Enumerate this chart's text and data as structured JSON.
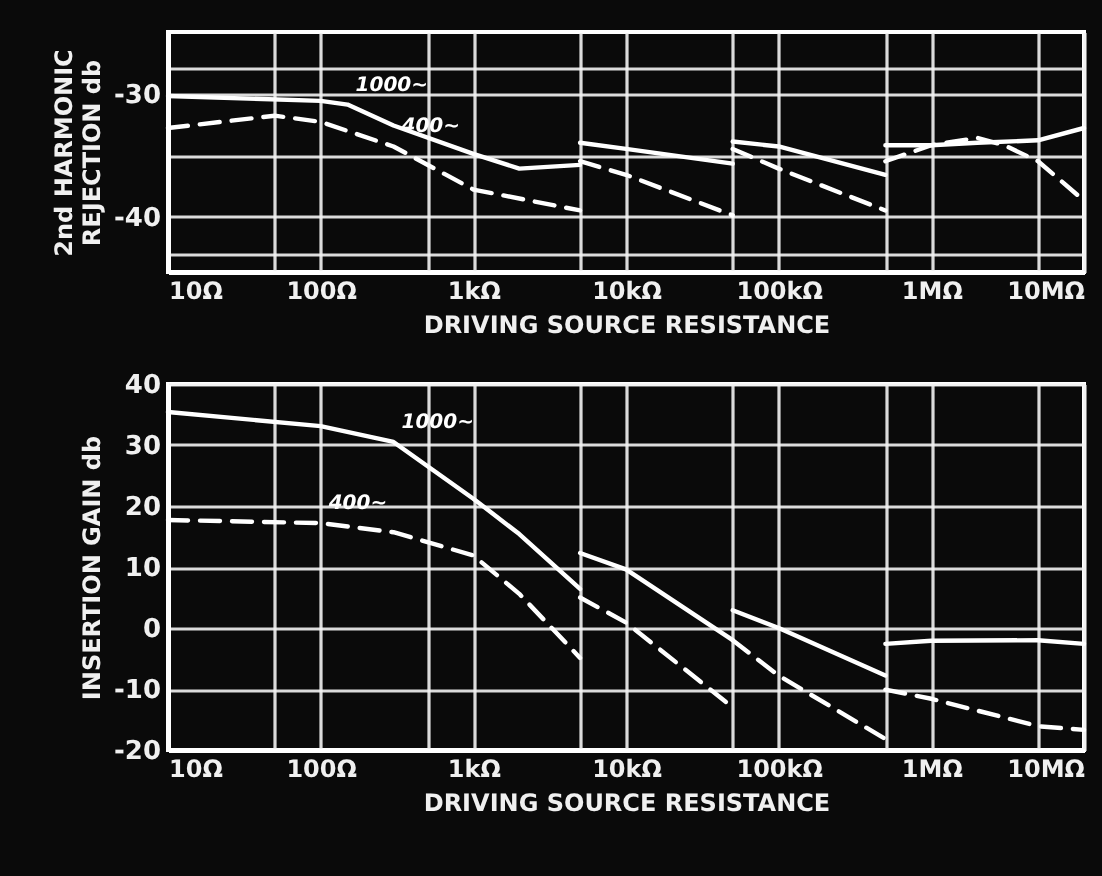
{
  "chart_data": [
    {
      "type": "line",
      "ylabel": "2nd HARMONIC\nREJECTION db",
      "xlabel": "DRIVING SOURCE RESISTANCE",
      "log": "x",
      "grid": true,
      "xlim": [
        10,
        10000000
      ],
      "ylim": [
        -44.5,
        -25
      ],
      "xticks": [
        {
          "value": 10,
          "label": "10Ω"
        },
        {
          "value": 50,
          "label": null
        },
        {
          "value": 100,
          "label": "100Ω"
        },
        {
          "value": 500,
          "label": null
        },
        {
          "value": 1000,
          "label": "1kΩ"
        },
        {
          "value": 5000,
          "label": null
        },
        {
          "value": 10000,
          "label": "10kΩ"
        },
        {
          "value": 50000,
          "label": null
        },
        {
          "value": 100000,
          "label": "100kΩ"
        },
        {
          "value": 500000,
          "label": null
        },
        {
          "value": 1000000,
          "label": "1MΩ"
        },
        {
          "value": 5000000,
          "label": null
        },
        {
          "value": 10000000,
          "label": "10MΩ"
        }
      ],
      "yticks": [
        {
          "value": -28,
          "label": null
        },
        -30,
        {
          "value": -35,
          "label": null
        },
        -40,
        {
          "value": -43,
          "label": null
        }
      ],
      "series": [
        {
          "color": "#ffffff",
          "line_style": "solid",
          "x": [
            10,
            100,
            150,
            300,
            1000,
            2000,
            5000,
            null,
            5000,
            10000,
            50000,
            null,
            50000,
            100000,
            500000,
            null,
            500000,
            1000000,
            2000000,
            5000000,
            10000000
          ],
          "values": [
            -30.2,
            -30.6,
            -30.9,
            -32.6,
            -34.9,
            -36.1,
            -35.8,
            null,
            -34.0,
            -34.5,
            -35.7,
            null,
            -33.9,
            -34.3,
            -36.6,
            null,
            -34.2,
            -34.2,
            -34.0,
            -33.8,
            -32.8
          ]
        },
        {
          "color": "#ffffff",
          "line_style": "dashed",
          "x": [
            10,
            50,
            100,
            300,
            1000,
            5000,
            null,
            5000,
            10000,
            50000,
            null,
            50000,
            100000,
            500000,
            null,
            500000,
            1000000,
            2000000,
            3000000,
            5000000,
            10000000
          ],
          "values": [
            -32.8,
            -31.8,
            -32.3,
            -34.3,
            -37.8,
            -39.5,
            null,
            -35.5,
            -36.6,
            -39.9,
            null,
            -34.5,
            -36.1,
            -39.5,
            null,
            -35.5,
            -34.2,
            -33.6,
            -34.2,
            -35.5,
            -38.7
          ]
        }
      ],
      "annotations": [
        {
          "text": "1000~",
          "x": 150,
          "y": -30.9
        },
        {
          "text": "400~",
          "x": 300,
          "y": -34.3
        }
      ]
    },
    {
      "type": "line",
      "ylabel": "INSERTION GAIN db",
      "xlabel": "DRIVING SOURCE RESISTANCE",
      "log": "x",
      "grid": true,
      "xlim": [
        10,
        10000000
      ],
      "ylim": [
        -20,
        40
      ],
      "xticks": [
        {
          "value": 10,
          "label": "10Ω"
        },
        {
          "value": 50,
          "label": null
        },
        {
          "value": 100,
          "label": "100Ω"
        },
        {
          "value": 500,
          "label": null
        },
        {
          "value": 1000,
          "label": "1kΩ"
        },
        {
          "value": 5000,
          "label": null
        },
        {
          "value": 10000,
          "label": "10kΩ"
        },
        {
          "value": 50000,
          "label": null
        },
        {
          "value": 100000,
          "label": "100kΩ"
        },
        {
          "value": 500000,
          "label": null
        },
        {
          "value": 1000000,
          "label": "1MΩ"
        },
        {
          "value": 5000000,
          "label": null
        },
        {
          "value": 10000000,
          "label": "10MΩ"
        }
      ],
      "yticks": [
        -20,
        -10,
        0,
        10,
        20,
        30,
        40
      ],
      "series": [
        {
          "color": "#ffffff",
          "line_style": "solid",
          "x": [
            10,
            100,
            300,
            1000,
            2000,
            5000,
            null,
            5000,
            10000,
            50000,
            null,
            50000,
            100000,
            500000,
            null,
            500000,
            1000000,
            5000000,
            10000000
          ],
          "values": [
            35.4,
            33.1,
            30.5,
            21.2,
            15.4,
            6.4,
            null,
            12.3,
            9.6,
            -2,
            null,
            2.9,
            0,
            -7.8,
            null,
            -2.6,
            -2.1,
            -2,
            -2.6
          ]
        },
        {
          "color": "#ffffff",
          "line_style": "dashed",
          "x": [
            10,
            100,
            300,
            1000,
            2000,
            5000,
            null,
            5000,
            10000,
            50000,
            null,
            50000,
            100000,
            500000,
            null,
            500000,
            1000000,
            5000000,
            10000000
          ],
          "values": [
            17.7,
            17.2,
            15.7,
            11.9,
            5.6,
            -4.9,
            null,
            5,
            0.9,
            -13,
            null,
            -2,
            -7.8,
            -18.2,
            null,
            -10.1,
            -11.6,
            -16.1,
            -16.7
          ]
        }
      ],
      "annotations": [
        {
          "text": "1000~",
          "x": 300,
          "y": 30.5
        },
        {
          "text": "400~",
          "x": 100,
          "y": 17.2
        }
      ]
    }
  ]
}
